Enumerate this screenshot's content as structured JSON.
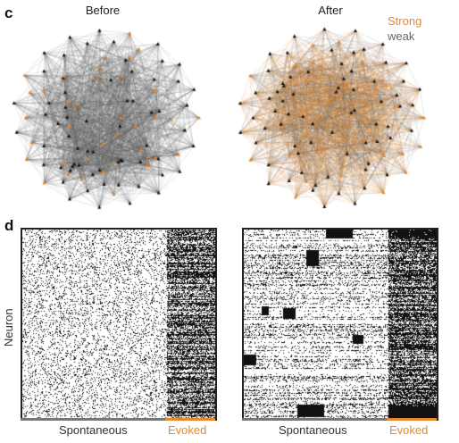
{
  "panel_c": {
    "letter": "c",
    "left_title": "Before",
    "right_title": "After",
    "legend": {
      "strong": "Strong",
      "weak": "weak"
    }
  },
  "panel_d": {
    "letter": "d",
    "ylabel": "Neuron",
    "left_xlabels": {
      "spontaneous": "Spontaneous",
      "evoked": "Evoked"
    },
    "right_xlabels": {
      "spontaneous": "Spontaneous",
      "evoked": "Evoked"
    }
  },
  "colors": {
    "strong": "#e8882a",
    "weak": "#666666",
    "node_dark": "#111111",
    "node_orange": "#e8882a",
    "spike": "#111111",
    "bar_spont": "#777777",
    "bar_evoked": "#e8882a"
  }
}
